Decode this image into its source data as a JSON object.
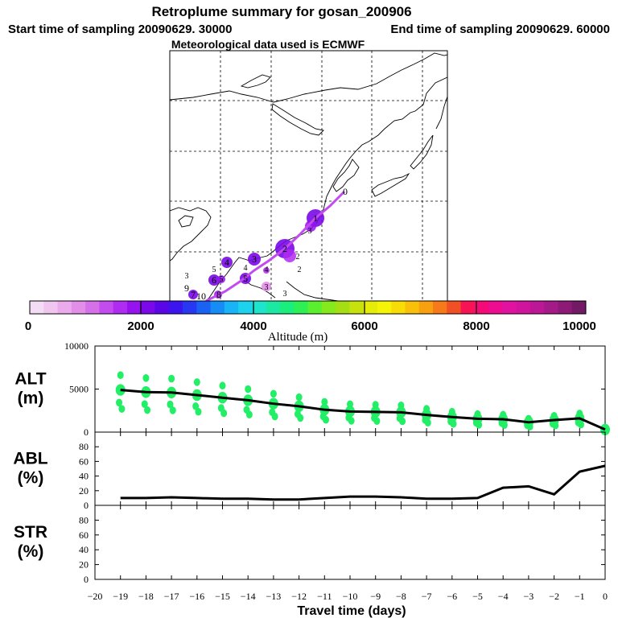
{
  "header": {
    "title": "Retroplume summary for gosan_200906",
    "start_text": "Start time of sampling 20090629. 30000",
    "end_text": "End time of sampling 20090629. 60000",
    "met_text": "Meteorological data used is ECMWF"
  },
  "colorbar": {
    "tick_labels": [
      "0",
      "2000",
      "4000",
      "6000",
      "8000",
      "10000"
    ],
    "label": "Altitude (m)",
    "colors": [
      "#f5dcf5",
      "#f0c6f0",
      "#ebaaeb",
      "#e28ee8",
      "#d670e8",
      "#c24cee",
      "#b02cf2",
      "#9612ee",
      "#7a08e8",
      "#5a06e6",
      "#3c14f0",
      "#2838f2",
      "#1a62f4",
      "#168cf6",
      "#18b4f6",
      "#1cd2ec",
      "#1ee4cc",
      "#1ce8a4",
      "#1aee7c",
      "#2cf054",
      "#5af030",
      "#84ea1e",
      "#a6de14",
      "#c6e20c",
      "#e4ec08",
      "#f6f406",
      "#f8dc06",
      "#f8c008",
      "#f8a010",
      "#f67a1a",
      "#f05024",
      "#f81454",
      "#f60a78",
      "#ee0c90",
      "#e212a0",
      "#d0149e",
      "#bc1896",
      "#a41a88",
      "#8e1a78",
      "#721a64"
    ]
  },
  "map": {
    "trajectory_labels": [
      "0",
      "1",
      "2",
      "3",
      "4",
      "5",
      "6",
      "7",
      "8",
      "9",
      "10"
    ],
    "cluster_labels": [
      "2",
      "3",
      "4",
      "5",
      "2",
      "3",
      "3",
      "4",
      "5",
      "3"
    ]
  },
  "chart_data": [
    {
      "type": "line",
      "panel": "ALT",
      "ylabel": "ALT\n(m)",
      "ylabel_lines": [
        "ALT",
        "(m)"
      ],
      "yticks": [
        "0",
        "5000",
        "10000"
      ],
      "ylim": [
        0,
        10000
      ],
      "xlim": [
        -20,
        0
      ],
      "x": [
        -19,
        -18,
        -17,
        -16,
        -15,
        -14,
        -13,
        -12,
        -11,
        -10,
        -9,
        -8,
        -7,
        -6,
        -5,
        -4,
        -3,
        -2,
        -1,
        0
      ],
      "values": [
        4900,
        4650,
        4600,
        4300,
        4000,
        3700,
        3300,
        3000,
        2600,
        2400,
        2350,
        2300,
        2000,
        1750,
        1550,
        1500,
        1150,
        1400,
        1600,
        300
      ],
      "scatter_color": "#22ee66"
    },
    {
      "type": "line",
      "panel": "ABL",
      "ylabel": "ABL\n(%)",
      "ylabel_lines": [
        "ABL",
        "(%)"
      ],
      "yticks": [
        "0",
        "20",
        "40",
        "60",
        "80"
      ],
      "ylim": [
        0,
        100
      ],
      "xlim": [
        -20,
        0
      ],
      "x": [
        -19,
        -18,
        -17,
        -16,
        -15,
        -14,
        -13,
        -12,
        -11,
        -10,
        -9,
        -8,
        -7,
        -6,
        -5,
        -4,
        -3,
        -2,
        -1,
        0
      ],
      "values": [
        10,
        10,
        11,
        10,
        9,
        9,
        8,
        8,
        10,
        12,
        12,
        11,
        9,
        9,
        10,
        24,
        26,
        15,
        46,
        54
      ]
    },
    {
      "type": "line",
      "panel": "STR",
      "ylabel": "STR\n(%)",
      "ylabel_lines": [
        "STR",
        "(%)"
      ],
      "yticks": [
        "0",
        "20",
        "40",
        "60",
        "80"
      ],
      "ylim": [
        0,
        100
      ],
      "xlim": [
        -20,
        0
      ],
      "xlabel": "Travel time (days)",
      "xticks": [
        -20,
        -19,
        -18,
        -17,
        -16,
        -15,
        -14,
        -13,
        -12,
        -11,
        -10,
        -9,
        -8,
        -7,
        -6,
        -5,
        -4,
        -3,
        -2,
        -1,
        0
      ],
      "xtick_labels": [
        "−20",
        "−19",
        "−18",
        "−17",
        "−16",
        "−15",
        "−14",
        "−13",
        "−12",
        "−11",
        "−10",
        "−9",
        "−8",
        "−7",
        "−6",
        "−5",
        "−4",
        "−3",
        "−2",
        "−1",
        "0"
      ],
      "values": []
    }
  ]
}
